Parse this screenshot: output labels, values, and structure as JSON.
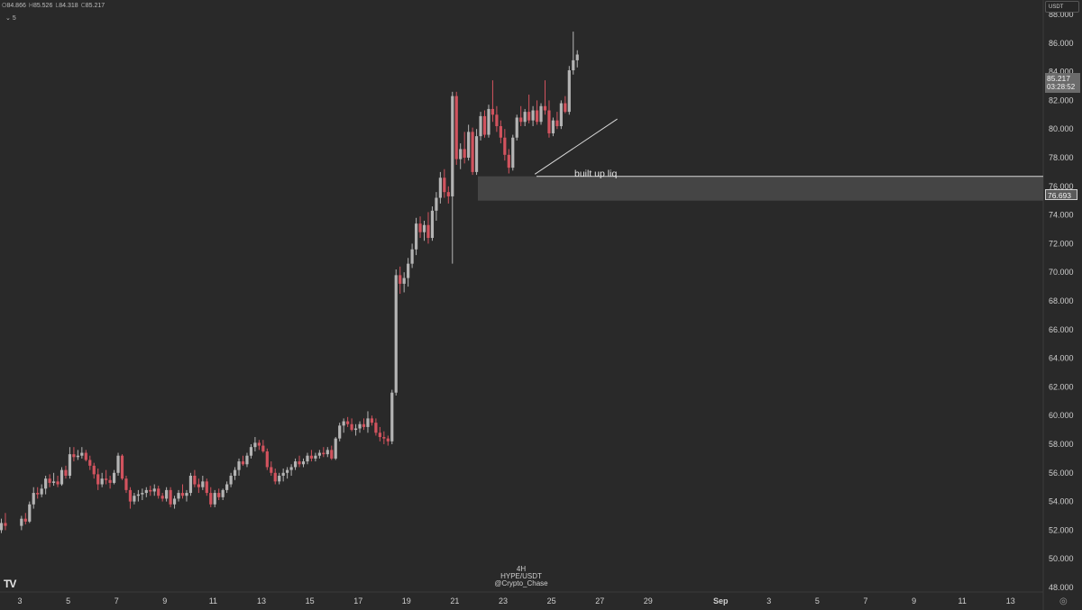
{
  "header": {
    "ohlc": [
      {
        "k": "O",
        "v": "84.866"
      },
      {
        "k": "H",
        "v": "85.526"
      },
      {
        "k": "L",
        "v": "84.318"
      },
      {
        "k": "C",
        "v": "85.217"
      }
    ],
    "interval_label": "5"
  },
  "currency": "USDT",
  "last_price": {
    "value": "85.217",
    "countdown": "03:28:52"
  },
  "level_label": "76.693",
  "annotation": "built up liq",
  "watermark": {
    "line1": "4H",
    "line2": "HYPE/USDT",
    "line3": "@Crypto_Chase"
  },
  "logo_text": "TV",
  "colors": {
    "background": "#292929",
    "up_candle": "#b4b4b4",
    "down_candle": "#d2535e",
    "zone": "#4a4a4a",
    "level_line": "#d8d8d8"
  },
  "chart_data": {
    "type": "candlestick",
    "title": "",
    "symbol": "HYPE/USDT",
    "timeframe": "4H",
    "xlabel": "",
    "ylabel": "",
    "ylim": [
      48,
      88.6
    ],
    "y_ticks": [
      "48.000",
      "50.000",
      "52.000",
      "54.000",
      "56.000",
      "58.000",
      "60.000",
      "62.000",
      "64.000",
      "66.000",
      "68.000",
      "70.000",
      "72.000",
      "74.000",
      "76.000",
      "78.000",
      "80.000",
      "82.000",
      "84.000",
      "86.000",
      "88.000"
    ],
    "x_ticks": [
      "3",
      "5",
      "7",
      "9",
      "11",
      "13",
      "15",
      "17",
      "19",
      "21",
      "23",
      "25",
      "27",
      "29",
      "Sep",
      "3",
      "5",
      "7",
      "9",
      "11",
      "13"
    ],
    "grid": false,
    "series_by_day": [
      {
        "day": "Aug 2",
        "candles": [
          [
            51.5,
            52.0,
            51.3,
            52.0
          ],
          [
            52.0,
            52.8,
            51.8,
            52.5
          ],
          [
            52.5,
            53.2,
            52.0,
            52.3
          ]
        ]
      },
      {
        "day": "Aug 3",
        "candles": [
          [
            52.3,
            53.0,
            52.0,
            52.8
          ],
          [
            52.8,
            53.2,
            52.4,
            52.6
          ],
          [
            52.6,
            54.0,
            52.5,
            53.8
          ],
          [
            53.8,
            55.0,
            53.5,
            54.6
          ],
          [
            54.6,
            55.0,
            54.2,
            54.5
          ],
          [
            54.5,
            55.2,
            54.3,
            54.9
          ]
        ]
      },
      {
        "day": "Aug 4",
        "candles": [
          [
            54.9,
            55.8,
            54.5,
            55.6
          ],
          [
            55.6,
            55.9,
            55.0,
            55.3
          ],
          [
            55.3,
            56.0,
            55.1,
            55.4
          ],
          [
            55.4,
            55.8,
            55.0,
            55.2
          ],
          [
            55.2,
            56.4,
            55.1,
            56.2
          ],
          [
            56.2,
            56.5,
            55.6,
            55.8
          ]
        ]
      },
      {
        "day": "Aug 5",
        "candles": [
          [
            55.8,
            57.8,
            55.6,
            57.3
          ],
          [
            57.3,
            57.8,
            56.8,
            57.1
          ],
          [
            57.1,
            57.6,
            56.9,
            57.2
          ],
          [
            57.2,
            57.8,
            57.0,
            57.4
          ],
          [
            57.4,
            57.6,
            56.8,
            56.9
          ],
          [
            56.9,
            57.2,
            56.2,
            56.5
          ]
        ]
      },
      {
        "day": "Aug 6",
        "candles": [
          [
            56.5,
            56.7,
            55.6,
            55.9
          ],
          [
            55.9,
            56.3,
            54.8,
            55.2
          ],
          [
            55.2,
            56.0,
            55.0,
            55.6
          ],
          [
            55.6,
            56.2,
            55.2,
            55.5
          ],
          [
            55.5,
            55.8,
            54.9,
            55.3
          ],
          [
            55.3,
            56.2,
            55.2,
            56.0
          ]
        ]
      },
      {
        "day": "Aug 7",
        "candles": [
          [
            56.0,
            57.4,
            55.8,
            57.2
          ],
          [
            57.2,
            57.3,
            55.5,
            55.6
          ],
          [
            55.6,
            55.8,
            54.6,
            54.8
          ],
          [
            54.8,
            55.0,
            53.5,
            54.0
          ],
          [
            54.0,
            54.6,
            53.8,
            54.4
          ],
          [
            54.4,
            54.8,
            54.0,
            54.5
          ]
        ]
      },
      {
        "day": "Aug 8",
        "candles": [
          [
            54.5,
            54.9,
            54.1,
            54.6
          ],
          [
            54.6,
            55.0,
            54.3,
            54.8
          ],
          [
            54.8,
            55.1,
            54.4,
            54.7
          ],
          [
            54.7,
            55.2,
            54.4,
            54.9
          ],
          [
            54.9,
            55.1,
            54.2,
            54.4
          ],
          [
            54.4,
            54.6,
            54.0,
            54.2
          ]
        ]
      },
      {
        "day": "Aug 9",
        "candles": [
          [
            54.2,
            55.0,
            54.0,
            54.8
          ],
          [
            54.8,
            55.0,
            53.6,
            53.8
          ],
          [
            53.8,
            54.4,
            53.5,
            54.2
          ],
          [
            54.2,
            54.8,
            54.0,
            54.6
          ],
          [
            54.6,
            55.2,
            54.2,
            54.4
          ],
          [
            54.4,
            54.8,
            54.0,
            54.6
          ]
        ]
      },
      {
        "day": "Aug 10",
        "candles": [
          [
            54.6,
            56.0,
            54.4,
            55.8
          ],
          [
            55.8,
            56.2,
            55.0,
            55.2
          ],
          [
            55.2,
            55.6,
            54.6,
            55.0
          ],
          [
            55.0,
            55.8,
            54.8,
            55.4
          ],
          [
            55.4,
            55.6,
            54.4,
            54.6
          ],
          [
            54.6,
            55.0,
            53.6,
            53.8
          ]
        ]
      },
      {
        "day": "Aug 11",
        "candles": [
          [
            53.8,
            54.8,
            53.6,
            54.6
          ],
          [
            54.6,
            54.9,
            54.1,
            54.3
          ],
          [
            54.3,
            54.9,
            54.1,
            54.8
          ],
          [
            54.8,
            55.4,
            54.6,
            55.2
          ],
          [
            55.2,
            56.0,
            55.0,
            55.8
          ],
          [
            55.8,
            56.4,
            55.5,
            56.2
          ]
        ]
      },
      {
        "day": "Aug 12",
        "candles": [
          [
            56.2,
            57.0,
            55.8,
            56.8
          ],
          [
            56.8,
            57.2,
            56.5,
            56.6
          ],
          [
            56.6,
            57.4,
            56.4,
            57.2
          ],
          [
            57.2,
            58.0,
            57.0,
            57.8
          ],
          [
            57.8,
            58.5,
            57.5,
            58.1
          ],
          [
            58.1,
            58.3,
            57.6,
            57.9
          ]
        ]
      },
      {
        "day": "Aug 13",
        "candles": [
          [
            57.9,
            58.3,
            57.4,
            57.5
          ],
          [
            57.5,
            57.7,
            56.2,
            56.4
          ],
          [
            56.4,
            56.8,
            55.8,
            56.0
          ],
          [
            56.0,
            56.3,
            55.2,
            55.4
          ],
          [
            55.4,
            56.0,
            55.2,
            55.8
          ],
          [
            55.8,
            56.3,
            55.4,
            56.0
          ]
        ]
      },
      {
        "day": "Aug 14",
        "candles": [
          [
            56.0,
            56.4,
            55.6,
            56.2
          ],
          [
            56.2,
            56.6,
            55.8,
            56.4
          ],
          [
            56.4,
            57.0,
            56.2,
            56.8
          ],
          [
            56.8,
            57.2,
            56.4,
            56.6
          ],
          [
            56.6,
            57.0,
            56.4,
            56.8
          ],
          [
            56.8,
            57.4,
            56.6,
            57.2
          ]
        ]
      },
      {
        "day": "Aug 15",
        "candles": [
          [
            57.2,
            57.6,
            56.8,
            57.0
          ],
          [
            57.0,
            57.4,
            56.8,
            57.2
          ],
          [
            57.2,
            57.6,
            57.0,
            57.4
          ],
          [
            57.4,
            57.8,
            57.1,
            57.3
          ],
          [
            57.3,
            57.8,
            57.1,
            57.6
          ],
          [
            57.6,
            57.9,
            56.9,
            57.0
          ]
        ]
      },
      {
        "day": "Aug 16",
        "candles": [
          [
            57.0,
            58.5,
            56.9,
            58.4
          ],
          [
            58.4,
            59.5,
            58.2,
            59.3
          ],
          [
            59.3,
            59.8,
            58.8,
            59.6
          ],
          [
            59.6,
            59.9,
            59.2,
            59.4
          ],
          [
            59.4,
            59.8,
            58.9,
            59.0
          ],
          [
            59.0,
            59.4,
            58.6,
            59.1
          ]
        ]
      },
      {
        "day": "Aug 17",
        "candles": [
          [
            59.1,
            59.6,
            58.8,
            59.4
          ],
          [
            59.4,
            59.8,
            59.0,
            59.2
          ],
          [
            59.2,
            60.3,
            58.8,
            59.8
          ],
          [
            59.8,
            60.0,
            59.3,
            59.5
          ],
          [
            59.5,
            59.8,
            58.6,
            58.8
          ],
          [
            58.8,
            59.2,
            58.2,
            58.5
          ]
        ]
      },
      {
        "day": "Aug 18",
        "candles": [
          [
            58.5,
            58.9,
            58.0,
            58.4
          ],
          [
            58.4,
            58.6,
            57.9,
            58.2
          ],
          [
            58.2,
            61.8,
            58.0,
            61.6
          ],
          [
            61.6,
            70.2,
            61.4,
            69.8
          ],
          [
            69.8,
            70.4,
            68.5,
            69.2
          ],
          [
            69.2,
            70.0,
            68.6,
            69.6
          ]
        ]
      },
      {
        "day": "Aug 19",
        "candles": [
          [
            69.6,
            71.0,
            69.0,
            70.6
          ],
          [
            70.6,
            72.0,
            70.3,
            71.6
          ],
          [
            71.6,
            73.8,
            71.2,
            73.4
          ],
          [
            73.4,
            73.9,
            72.4,
            72.8
          ],
          [
            72.8,
            73.6,
            72.2,
            73.3
          ],
          [
            73.3,
            74.2,
            72.0,
            72.4
          ]
        ]
      },
      {
        "day": "Aug 20",
        "candles": [
          [
            72.4,
            74.6,
            72.2,
            74.3
          ],
          [
            74.3,
            75.6,
            73.6,
            75.2
          ],
          [
            75.2,
            77.0,
            74.8,
            76.6
          ],
          [
            76.6,
            77.2,
            75.2,
            75.6
          ],
          [
            75.6,
            76.0,
            74.8,
            75.3
          ],
          [
            75.3,
            82.6,
            70.6,
            82.3
          ]
        ]
      },
      {
        "day": "Aug 21",
        "candles": [
          [
            82.3,
            82.6,
            77.5,
            77.9
          ],
          [
            77.9,
            79.0,
            77.2,
            78.6
          ],
          [
            78.6,
            79.8,
            77.6,
            78.0
          ],
          [
            78.0,
            80.3,
            77.8,
            79.8
          ],
          [
            79.8,
            80.1,
            76.8,
            77.0
          ],
          [
            77.0,
            80.0,
            76.8,
            79.5
          ]
        ]
      },
      {
        "day": "Aug 22",
        "candles": [
          [
            79.5,
            81.2,
            79.2,
            80.9
          ],
          [
            80.9,
            81.3,
            79.4,
            79.6
          ],
          [
            79.6,
            81.7,
            79.4,
            81.4
          ],
          [
            81.4,
            83.4,
            80.5,
            81.0
          ],
          [
            81.0,
            81.6,
            79.8,
            80.2
          ],
          [
            80.2,
            80.6,
            79.0,
            79.4
          ]
        ]
      },
      {
        "day": "Aug 23",
        "candles": [
          [
            79.4,
            80.0,
            77.8,
            78.2
          ],
          [
            78.2,
            78.6,
            76.9,
            77.3
          ],
          [
            77.3,
            79.6,
            77.1,
            79.4
          ],
          [
            79.4,
            81.0,
            79.2,
            80.8
          ],
          [
            80.8,
            81.6,
            80.2,
            80.5
          ],
          [
            80.5,
            81.4,
            80.2,
            81.2
          ]
        ]
      },
      {
        "day": "Aug 24",
        "candles": [
          [
            81.2,
            82.4,
            80.4,
            80.6
          ],
          [
            80.6,
            81.6,
            80.2,
            81.3
          ],
          [
            81.3,
            82.0,
            80.3,
            80.5
          ],
          [
            80.5,
            81.8,
            80.3,
            81.6
          ],
          [
            81.6,
            83.4,
            81.0,
            81.3
          ],
          [
            81.3,
            82.0,
            79.4,
            79.7
          ]
        ]
      },
      {
        "day": "Aug 25",
        "candles": [
          [
            79.7,
            80.8,
            79.5,
            80.6
          ],
          [
            80.6,
            81.2,
            80.0,
            80.2
          ],
          [
            80.2,
            82.0,
            80.0,
            81.8
          ],
          [
            81.8,
            82.3,
            81.1,
            81.2
          ],
          [
            81.2,
            84.4,
            81.0,
            84.1
          ],
          [
            84.1,
            86.8,
            83.8,
            84.8
          ],
          [
            84.8,
            85.5,
            84.3,
            85.2
          ]
        ]
      }
    ],
    "levels": [
      {
        "name": "",
        "value": 76.693
      },
      {
        "name": "",
        "zone": [
          75.0,
          76.7
        ]
      }
    ],
    "trendline": [
      [
        24.5,
        76.85
      ],
      [
        27.5,
        80.7
      ]
    ],
    "annotation": "built up liq"
  }
}
